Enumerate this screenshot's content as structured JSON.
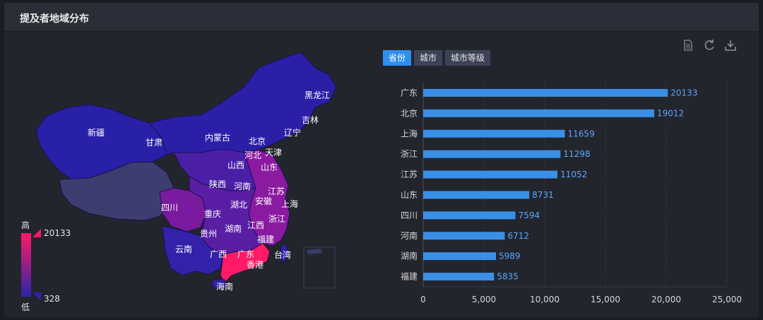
{
  "panel": {
    "title": "提及者地域分布"
  },
  "tabs": [
    {
      "label": "省份",
      "active": true
    },
    {
      "label": "城市",
      "active": false
    },
    {
      "label": "城市等级",
      "active": false
    }
  ],
  "tools": [
    "document-icon",
    "refresh-icon",
    "download-icon"
  ],
  "colors": {
    "high": "#ff1a66",
    "low": "#2a24a8",
    "bar": "#3a8fe6",
    "bar_label": "#5aa8ff"
  },
  "legend": {
    "high_label": "高",
    "low_label": "低",
    "max": "20133",
    "min": "328"
  },
  "chart_data": [
    {
      "type": "bar",
      "orientation": "horizontal",
      "categories": [
        "广东",
        "北京",
        "上海",
        "浙江",
        "江苏",
        "山东",
        "四川",
        "河南",
        "湖南",
        "福建"
      ],
      "values": [
        20133,
        19012,
        11659,
        11298,
        11052,
        8731,
        7594,
        6712,
        5989,
        5835
      ],
      "xlim": [
        0,
        25000
      ],
      "xticks": [
        "0",
        "5,000",
        "10,000",
        "15,000",
        "20,000",
        "25,000"
      ],
      "grid": true
    },
    {
      "type": "choropleth",
      "region_labels": [
        "黑龙江",
        "吉林",
        "辽宁",
        "新疆",
        "甘肃",
        "内蒙古",
        "北京",
        "天津",
        "河北",
        "山西",
        "山东",
        "陕西",
        "河南",
        "江苏",
        "四川",
        "重庆",
        "湖北",
        "安徽",
        "上海",
        "浙江",
        "贵州",
        "湖南",
        "江西",
        "福建",
        "云南",
        "广西",
        "广东",
        "香港",
        "台湾",
        "海南"
      ],
      "range": [
        328,
        20133
      ]
    }
  ]
}
